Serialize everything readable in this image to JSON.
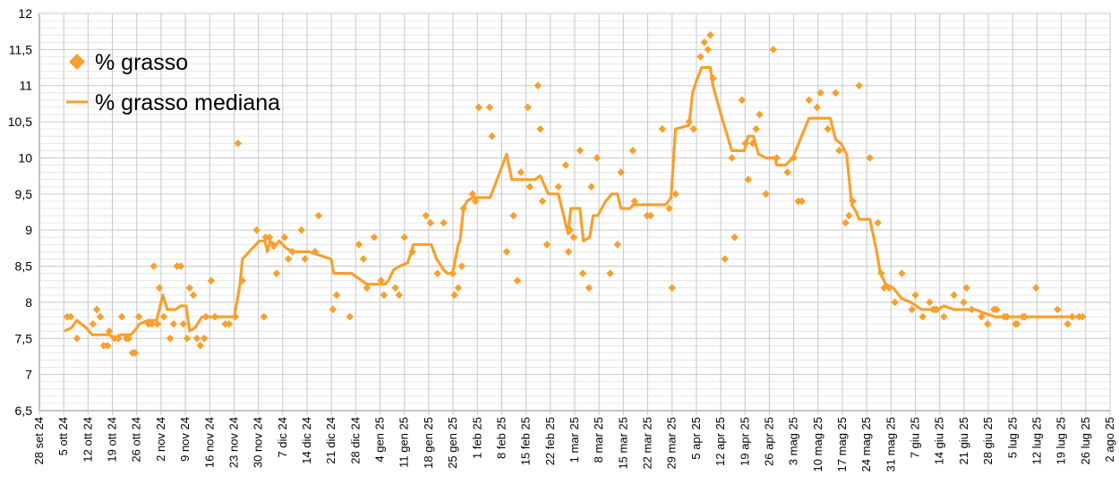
{
  "chart_data": {
    "type": "scatter+line",
    "title": "",
    "xlabel": "",
    "ylabel": "",
    "x_unit": "days since 28 set 24",
    "xlim": [
      0,
      308
    ],
    "ylim": [
      6.5,
      12
    ],
    "y_ticks": [
      "6,5",
      "7",
      "7,5",
      "8",
      "8,5",
      "9",
      "9,5",
      "10",
      "10,5",
      "11",
      "11,5",
      "12"
    ],
    "x_ticks": [
      "28 set 24",
      "5 ott 24",
      "12 ott 24",
      "19 ott 24",
      "26 ott 24",
      "2 nov 24",
      "9 nov 24",
      "16 nov 24",
      "23 nov 24",
      "30 nov 24",
      "7 dic 24",
      "14 dic 24",
      "21 dic 24",
      "28 dic 24",
      "4 gen 25",
      "11 gen 25",
      "18 gen 25",
      "25 gen 25",
      "1 feb 25",
      "8 feb 25",
      "15 feb 25",
      "22 feb 25",
      "1 mar 25",
      "8 mar 25",
      "15 mar 25",
      "22 mar 25",
      "29 mar 25",
      "5 apr 25",
      "12 apr 25",
      "19 apr 25",
      "26 apr 25",
      "3 mag 25",
      "10 mag 25",
      "17 mag 25",
      "24 mag 25",
      "31 mag 25",
      "7 giu 25",
      "14 giu 25",
      "21 giu 25",
      "28 giu 25",
      "5 lug 25",
      "12 lug 25",
      "19 lug 25",
      "26 lug 25",
      "2 ago 25"
    ],
    "grid": true,
    "legend_position": "top-left",
    "color": "#F7A02F",
    "series": [
      {
        "name": "% grasso",
        "type": "scatter",
        "marker": "diamond",
        "points": [
          [
            8.0,
            7.8
          ],
          [
            9.0,
            7.8
          ],
          [
            10.8,
            7.5
          ],
          [
            15.4,
            7.7
          ],
          [
            16.5,
            7.9
          ],
          [
            17.5,
            7.8
          ],
          [
            18.5,
            7.4
          ],
          [
            19.6,
            7.4
          ],
          [
            20.1,
            7.6
          ],
          [
            21.6,
            7.5
          ],
          [
            22.7,
            7.5
          ],
          [
            23.7,
            7.8
          ],
          [
            25.0,
            7.5
          ],
          [
            25.7,
            7.5
          ],
          [
            26.8,
            7.3
          ],
          [
            27.5,
            7.3
          ],
          [
            28.6,
            7.8
          ],
          [
            31.4,
            7.7
          ],
          [
            32.4,
            7.7
          ],
          [
            32.9,
            8.5
          ],
          [
            34.0,
            7.7
          ],
          [
            34.5,
            8.2
          ],
          [
            35.8,
            7.8
          ],
          [
            37.6,
            7.5
          ],
          [
            38.6,
            7.7
          ],
          [
            39.6,
            8.5
          ],
          [
            40.7,
            8.5
          ],
          [
            41.4,
            7.7
          ],
          [
            42.5,
            7.5
          ],
          [
            43.2,
            8.2
          ],
          [
            44.3,
            8.1
          ],
          [
            45.3,
            7.5
          ],
          [
            46.3,
            7.4
          ],
          [
            47.4,
            7.5
          ],
          [
            47.9,
            7.8
          ],
          [
            49.4,
            8.3
          ],
          [
            50.5,
            7.8
          ],
          [
            53.5,
            7.7
          ],
          [
            54.6,
            7.7
          ],
          [
            56.4,
            7.8
          ],
          [
            57.1,
            10.2
          ],
          [
            58.4,
            8.3
          ],
          [
            62.5,
            9.0
          ],
          [
            64.6,
            7.8
          ],
          [
            65.1,
            8.9
          ],
          [
            66.2,
            8.9
          ],
          [
            67.2,
            8.8
          ],
          [
            68.2,
            8.4
          ],
          [
            70.5,
            8.9
          ],
          [
            71.6,
            8.6
          ],
          [
            72.8,
            8.7
          ],
          [
            75.4,
            9.0
          ],
          [
            76.4,
            8.6
          ],
          [
            79.3,
            8.7
          ],
          [
            80.3,
            9.2
          ],
          [
            84.4,
            7.9
          ],
          [
            85.5,
            8.1
          ],
          [
            89.3,
            7.8
          ],
          [
            91.9,
            8.8
          ],
          [
            93.2,
            8.6
          ],
          [
            94.2,
            8.2
          ],
          [
            96.3,
            8.9
          ],
          [
            98.3,
            8.3
          ],
          [
            99.1,
            8.1
          ],
          [
            102.4,
            8.2
          ],
          [
            103.5,
            8.1
          ],
          [
            105.0,
            8.9
          ],
          [
            107.3,
            8.7
          ],
          [
            111.2,
            9.2
          ],
          [
            112.5,
            9.1
          ],
          [
            114.5,
            8.4
          ],
          [
            116.3,
            9.1
          ],
          [
            118.9,
            8.4
          ],
          [
            119.4,
            8.1
          ],
          [
            120.5,
            8.2
          ],
          [
            121.5,
            8.5
          ],
          [
            122.0,
            9.3
          ],
          [
            124.6,
            9.5
          ],
          [
            125.4,
            9.4
          ],
          [
            126.4,
            10.7
          ],
          [
            129.5,
            10.7
          ],
          [
            130.2,
            10.3
          ],
          [
            134.4,
            8.7
          ],
          [
            136.4,
            9.2
          ],
          [
            137.5,
            8.3
          ],
          [
            138.5,
            9.8
          ],
          [
            140.5,
            10.7
          ],
          [
            141.1,
            9.6
          ],
          [
            143.4,
            11.0
          ],
          [
            144.1,
            10.4
          ],
          [
            144.7,
            9.4
          ],
          [
            146.0,
            8.8
          ],
          [
            149.3,
            9.6
          ],
          [
            151.4,
            9.9
          ],
          [
            152.2,
            8.7
          ],
          [
            152.7,
            9.0
          ],
          [
            153.7,
            8.9
          ],
          [
            155.5,
            10.1
          ],
          [
            156.3,
            8.4
          ],
          [
            158.1,
            8.2
          ],
          [
            158.8,
            9.6
          ],
          [
            160.4,
            10.0
          ],
          [
            164.2,
            8.4
          ],
          [
            166.3,
            8.8
          ],
          [
            167.3,
            9.8
          ],
          [
            170.7,
            10.1
          ],
          [
            171.2,
            9.4
          ],
          [
            174.8,
            9.2
          ],
          [
            175.8,
            9.2
          ],
          [
            179.2,
            10.4
          ],
          [
            181.2,
            9.3
          ],
          [
            182.0,
            8.2
          ],
          [
            183.0,
            9.5
          ],
          [
            186.9,
            10.5
          ],
          [
            188.2,
            10.4
          ],
          [
            190.2,
            11.4
          ],
          [
            191.3,
            11.6
          ],
          [
            192.3,
            11.5
          ],
          [
            193.0,
            11.7
          ],
          [
            193.8,
            11.1
          ],
          [
            197.2,
            8.6
          ],
          [
            199.2,
            10.0
          ],
          [
            200.0,
            8.9
          ],
          [
            202.1,
            10.8
          ],
          [
            203.1,
            10.2
          ],
          [
            203.9,
            9.7
          ],
          [
            205.2,
            10.2
          ],
          [
            206.2,
            10.4
          ],
          [
            207.2,
            10.6
          ],
          [
            209.0,
            9.5
          ],
          [
            211.1,
            11.5
          ],
          [
            212.1,
            10.0
          ],
          [
            215.2,
            9.8
          ],
          [
            217.0,
            10.0
          ],
          [
            218.3,
            9.4
          ],
          [
            219.3,
            9.4
          ],
          [
            221.4,
            10.8
          ],
          [
            223.7,
            10.7
          ],
          [
            224.7,
            10.9
          ],
          [
            226.8,
            10.4
          ],
          [
            229.1,
            10.9
          ],
          [
            230.1,
            10.1
          ],
          [
            231.9,
            9.1
          ],
          [
            232.9,
            9.2
          ],
          [
            234.0,
            9.4
          ],
          [
            235.8,
            11.0
          ],
          [
            238.9,
            10.0
          ],
          [
            241.2,
            9.1
          ],
          [
            242.2,
            8.4
          ],
          [
            243.0,
            8.2
          ],
          [
            244.5,
            8.2
          ],
          [
            246.1,
            8.0
          ],
          [
            248.1,
            8.4
          ],
          [
            251.0,
            7.9
          ],
          [
            252.0,
            8.1
          ],
          [
            254.1,
            7.8
          ],
          [
            256.1,
            8.0
          ],
          [
            257.1,
            7.9
          ],
          [
            257.7,
            7.9
          ],
          [
            258.2,
            7.9
          ],
          [
            260.2,
            7.8
          ],
          [
            263.1,
            8.1
          ],
          [
            265.9,
            8.0
          ],
          [
            266.7,
            8.2
          ],
          [
            268.2,
            7.9
          ],
          [
            271.0,
            7.8
          ],
          [
            272.8,
            7.7
          ],
          [
            274.6,
            7.9
          ],
          [
            275.4,
            7.9
          ],
          [
            277.5,
            7.8
          ],
          [
            278.3,
            7.8
          ],
          [
            280.8,
            7.7
          ],
          [
            281.3,
            7.7
          ],
          [
            282.9,
            7.8
          ],
          [
            283.4,
            7.8
          ],
          [
            286.7,
            8.2
          ],
          [
            292.9,
            7.9
          ],
          [
            295.8,
            7.7
          ],
          [
            297.1,
            7.8
          ],
          [
            299.1,
            7.8
          ],
          [
            300.1,
            7.8
          ]
        ]
      },
      {
        "name": "% grasso mediana",
        "type": "line",
        "points": [
          [
            7.2,
            7.6
          ],
          [
            9.3,
            7.65
          ],
          [
            10.8,
            7.75
          ],
          [
            13.4,
            7.65
          ],
          [
            15.2,
            7.55
          ],
          [
            17.0,
            7.55
          ],
          [
            20.1,
            7.55
          ],
          [
            21.6,
            7.5
          ],
          [
            23.2,
            7.55
          ],
          [
            26.3,
            7.55
          ],
          [
            27.3,
            7.6
          ],
          [
            28.8,
            7.7
          ],
          [
            31.4,
            7.75
          ],
          [
            33.7,
            7.75
          ],
          [
            35.5,
            8.1
          ],
          [
            36.8,
            7.9
          ],
          [
            39.1,
            7.9
          ],
          [
            40.7,
            7.95
          ],
          [
            42.2,
            7.95
          ],
          [
            43.2,
            7.6
          ],
          [
            44.8,
            7.65
          ],
          [
            46.8,
            7.8
          ],
          [
            48.4,
            7.8
          ],
          [
            56.1,
            7.8
          ],
          [
            57.7,
            8.25
          ],
          [
            58.4,
            8.6
          ],
          [
            61.3,
            8.75
          ],
          [
            63.3,
            8.85
          ],
          [
            64.9,
            8.85
          ],
          [
            65.6,
            8.7
          ],
          [
            66.4,
            8.85
          ],
          [
            67.4,
            8.75
          ],
          [
            69.0,
            8.85
          ],
          [
            71.0,
            8.75
          ],
          [
            73.1,
            8.7
          ],
          [
            77.5,
            8.7
          ],
          [
            83.9,
            8.6
          ],
          [
            84.7,
            8.4
          ],
          [
            89.8,
            8.4
          ],
          [
            92.7,
            8.3
          ],
          [
            94.2,
            8.25
          ],
          [
            99.4,
            8.25
          ],
          [
            100.4,
            8.3
          ],
          [
            101.9,
            8.45
          ],
          [
            103.7,
            8.5
          ],
          [
            106.0,
            8.55
          ],
          [
            107.6,
            8.8
          ],
          [
            112.7,
            8.8
          ],
          [
            114.3,
            8.6
          ],
          [
            116.3,
            8.45
          ],
          [
            117.4,
            8.4
          ],
          [
            118.9,
            8.4
          ],
          [
            120.5,
            8.8
          ],
          [
            121.0,
            8.85
          ],
          [
            122.0,
            9.3
          ],
          [
            123.0,
            9.4
          ],
          [
            124.6,
            9.45
          ],
          [
            129.7,
            9.45
          ],
          [
            134.4,
            10.05
          ],
          [
            135.9,
            9.7
          ],
          [
            142.6,
            9.7
          ],
          [
            144.1,
            9.75
          ],
          [
            146.4,
            9.5
          ],
          [
            149.3,
            9.5
          ],
          [
            150.8,
            9.2
          ],
          [
            152.1,
            8.95
          ],
          [
            152.9,
            9.3
          ],
          [
            155.5,
            9.3
          ],
          [
            156.5,
            8.85
          ],
          [
            158.3,
            8.9
          ],
          [
            159.3,
            9.2
          ],
          [
            160.6,
            9.2
          ],
          [
            162.9,
            9.4
          ],
          [
            164.7,
            9.5
          ],
          [
            166.3,
            9.5
          ],
          [
            167.3,
            9.3
          ],
          [
            169.9,
            9.3
          ],
          [
            170.9,
            9.35
          ],
          [
            180.2,
            9.35
          ],
          [
            181.7,
            9.45
          ],
          [
            183.0,
            10.4
          ],
          [
            186.9,
            10.45
          ],
          [
            187.9,
            10.9
          ],
          [
            188.9,
            11.05
          ],
          [
            190.5,
            11.25
          ],
          [
            193.0,
            11.25
          ],
          [
            193.8,
            11.0
          ],
          [
            194.6,
            10.85
          ],
          [
            196.7,
            10.5
          ],
          [
            199.2,
            10.1
          ],
          [
            202.8,
            10.1
          ],
          [
            203.9,
            10.3
          ],
          [
            205.4,
            10.3
          ],
          [
            206.9,
            10.05
          ],
          [
            209.0,
            10.0
          ],
          [
            211.6,
            10.0
          ],
          [
            212.1,
            9.9
          ],
          [
            214.7,
            9.9
          ],
          [
            216.7,
            10.0
          ],
          [
            221.4,
            10.55
          ],
          [
            227.5,
            10.55
          ],
          [
            229.1,
            10.25
          ],
          [
            230.6,
            10.2
          ],
          [
            232.2,
            10.05
          ],
          [
            233.7,
            9.35
          ],
          [
            235.0,
            9.25
          ],
          [
            235.8,
            9.15
          ],
          [
            238.9,
            9.15
          ],
          [
            240.9,
            8.7
          ],
          [
            241.9,
            8.4
          ],
          [
            243.5,
            8.25
          ],
          [
            245.6,
            8.2
          ],
          [
            248.1,
            8.05
          ],
          [
            250.7,
            8.0
          ],
          [
            253.8,
            7.9
          ],
          [
            258.4,
            7.9
          ],
          [
            260.2,
            7.95
          ],
          [
            263.1,
            7.9
          ],
          [
            269.2,
            7.9
          ],
          [
            271.8,
            7.85
          ],
          [
            274.9,
            7.8
          ],
          [
            300.1,
            7.8
          ]
        ]
      }
    ]
  }
}
